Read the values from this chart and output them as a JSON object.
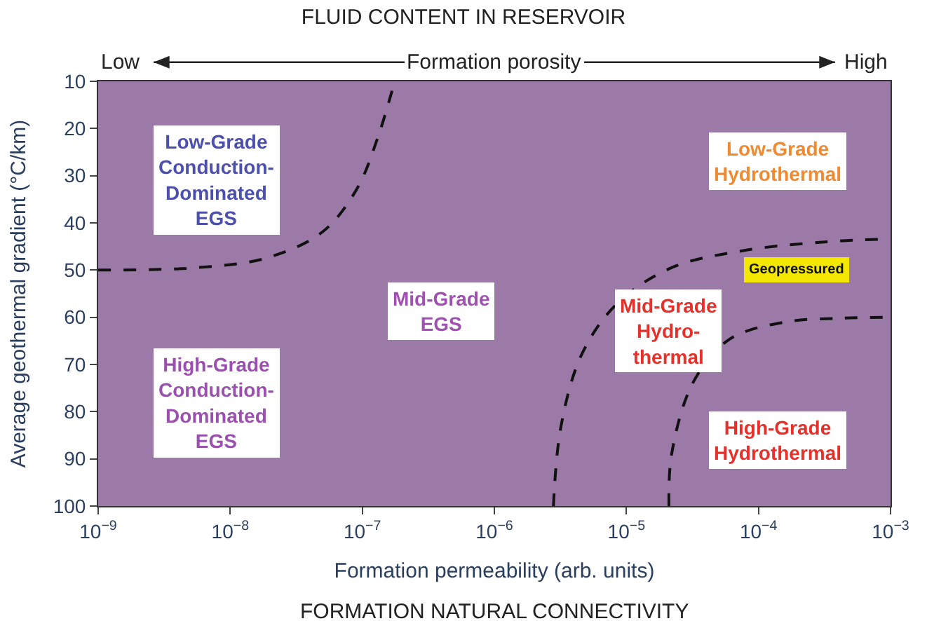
{
  "chart_data": {
    "type": "line",
    "title": "FLUID CONTENT IN RESERVOIR",
    "xlabel": "Formation permeability (arb. units)",
    "ylabel": "Average geothermal gradient (°C/km)",
    "log": "x",
    "xlim": [
      1e-09,
      0.001
    ],
    "ylim": [
      100,
      10
    ],
    "xticks": [
      {
        "value": 1e-09,
        "label": "10$^{−9}$"
      },
      {
        "value": 1e-08,
        "label": "10$^{−8}$"
      },
      {
        "value": 1e-07,
        "label": "10$^{−7}$"
      },
      {
        "value": 1e-06,
        "label": "10$^{−6}$"
      },
      {
        "value": 1e-05,
        "label": "10$^{−5}$"
      },
      {
        "value": 0.0001,
        "label": "10$^{−4}$"
      },
      {
        "value": 0.001,
        "label": "10$^{−3}$"
      }
    ],
    "yticks": [
      10,
      20,
      30,
      40,
      50,
      60,
      70,
      80,
      90,
      100
    ],
    "grid": false,
    "marker": "none",
    "line_style": "dashed",
    "series": [
      {
        "color": "#111111",
        "x": [
          1e-09,
          5.5e-09,
          1.9e-08,
          5e-08,
          9.1e-08,
          1.3e-07,
          1.7e-07
        ],
        "values": [
          50,
          49.5,
          47.4,
          41.9,
          32.8,
          22.2,
          11.5
        ]
      },
      {
        "color": "#111111",
        "x": [
          2.8e-06,
          3.2e-06,
          4.6e-06,
          8.5e-06,
          2.2e-05,
          7.6e-05,
          0.00033,
          0.001
        ],
        "values": [
          100,
          83,
          67.8,
          57.1,
          49.5,
          45.9,
          44,
          43.4
        ]
      },
      {
        "color": "#111111",
        "x": [
          2.1e-05,
          2.2e-05,
          3.2e-05,
          6e-05,
          0.00016,
          0.00043,
          0.001
        ],
        "values": [
          100,
          89,
          73.8,
          64.7,
          61,
          60.2,
          60
        ]
      }
    ],
    "annotations": [
      "Low-Grade\nConduction-\nDominated\nEGS",
      "High-Grade\nConduction-\nDominated\nEGS",
      "Mid-Grade\nEGS",
      "Low-Grade\nHydrothermal",
      "Geopressured",
      "Mid-Grade\nHydro-\nthermal",
      "High-Grade\nHydrothermal",
      "Low",
      "Formation porosity",
      "High",
      "FORMATION NATURAL CONNECTIVITY"
    ]
  }
}
